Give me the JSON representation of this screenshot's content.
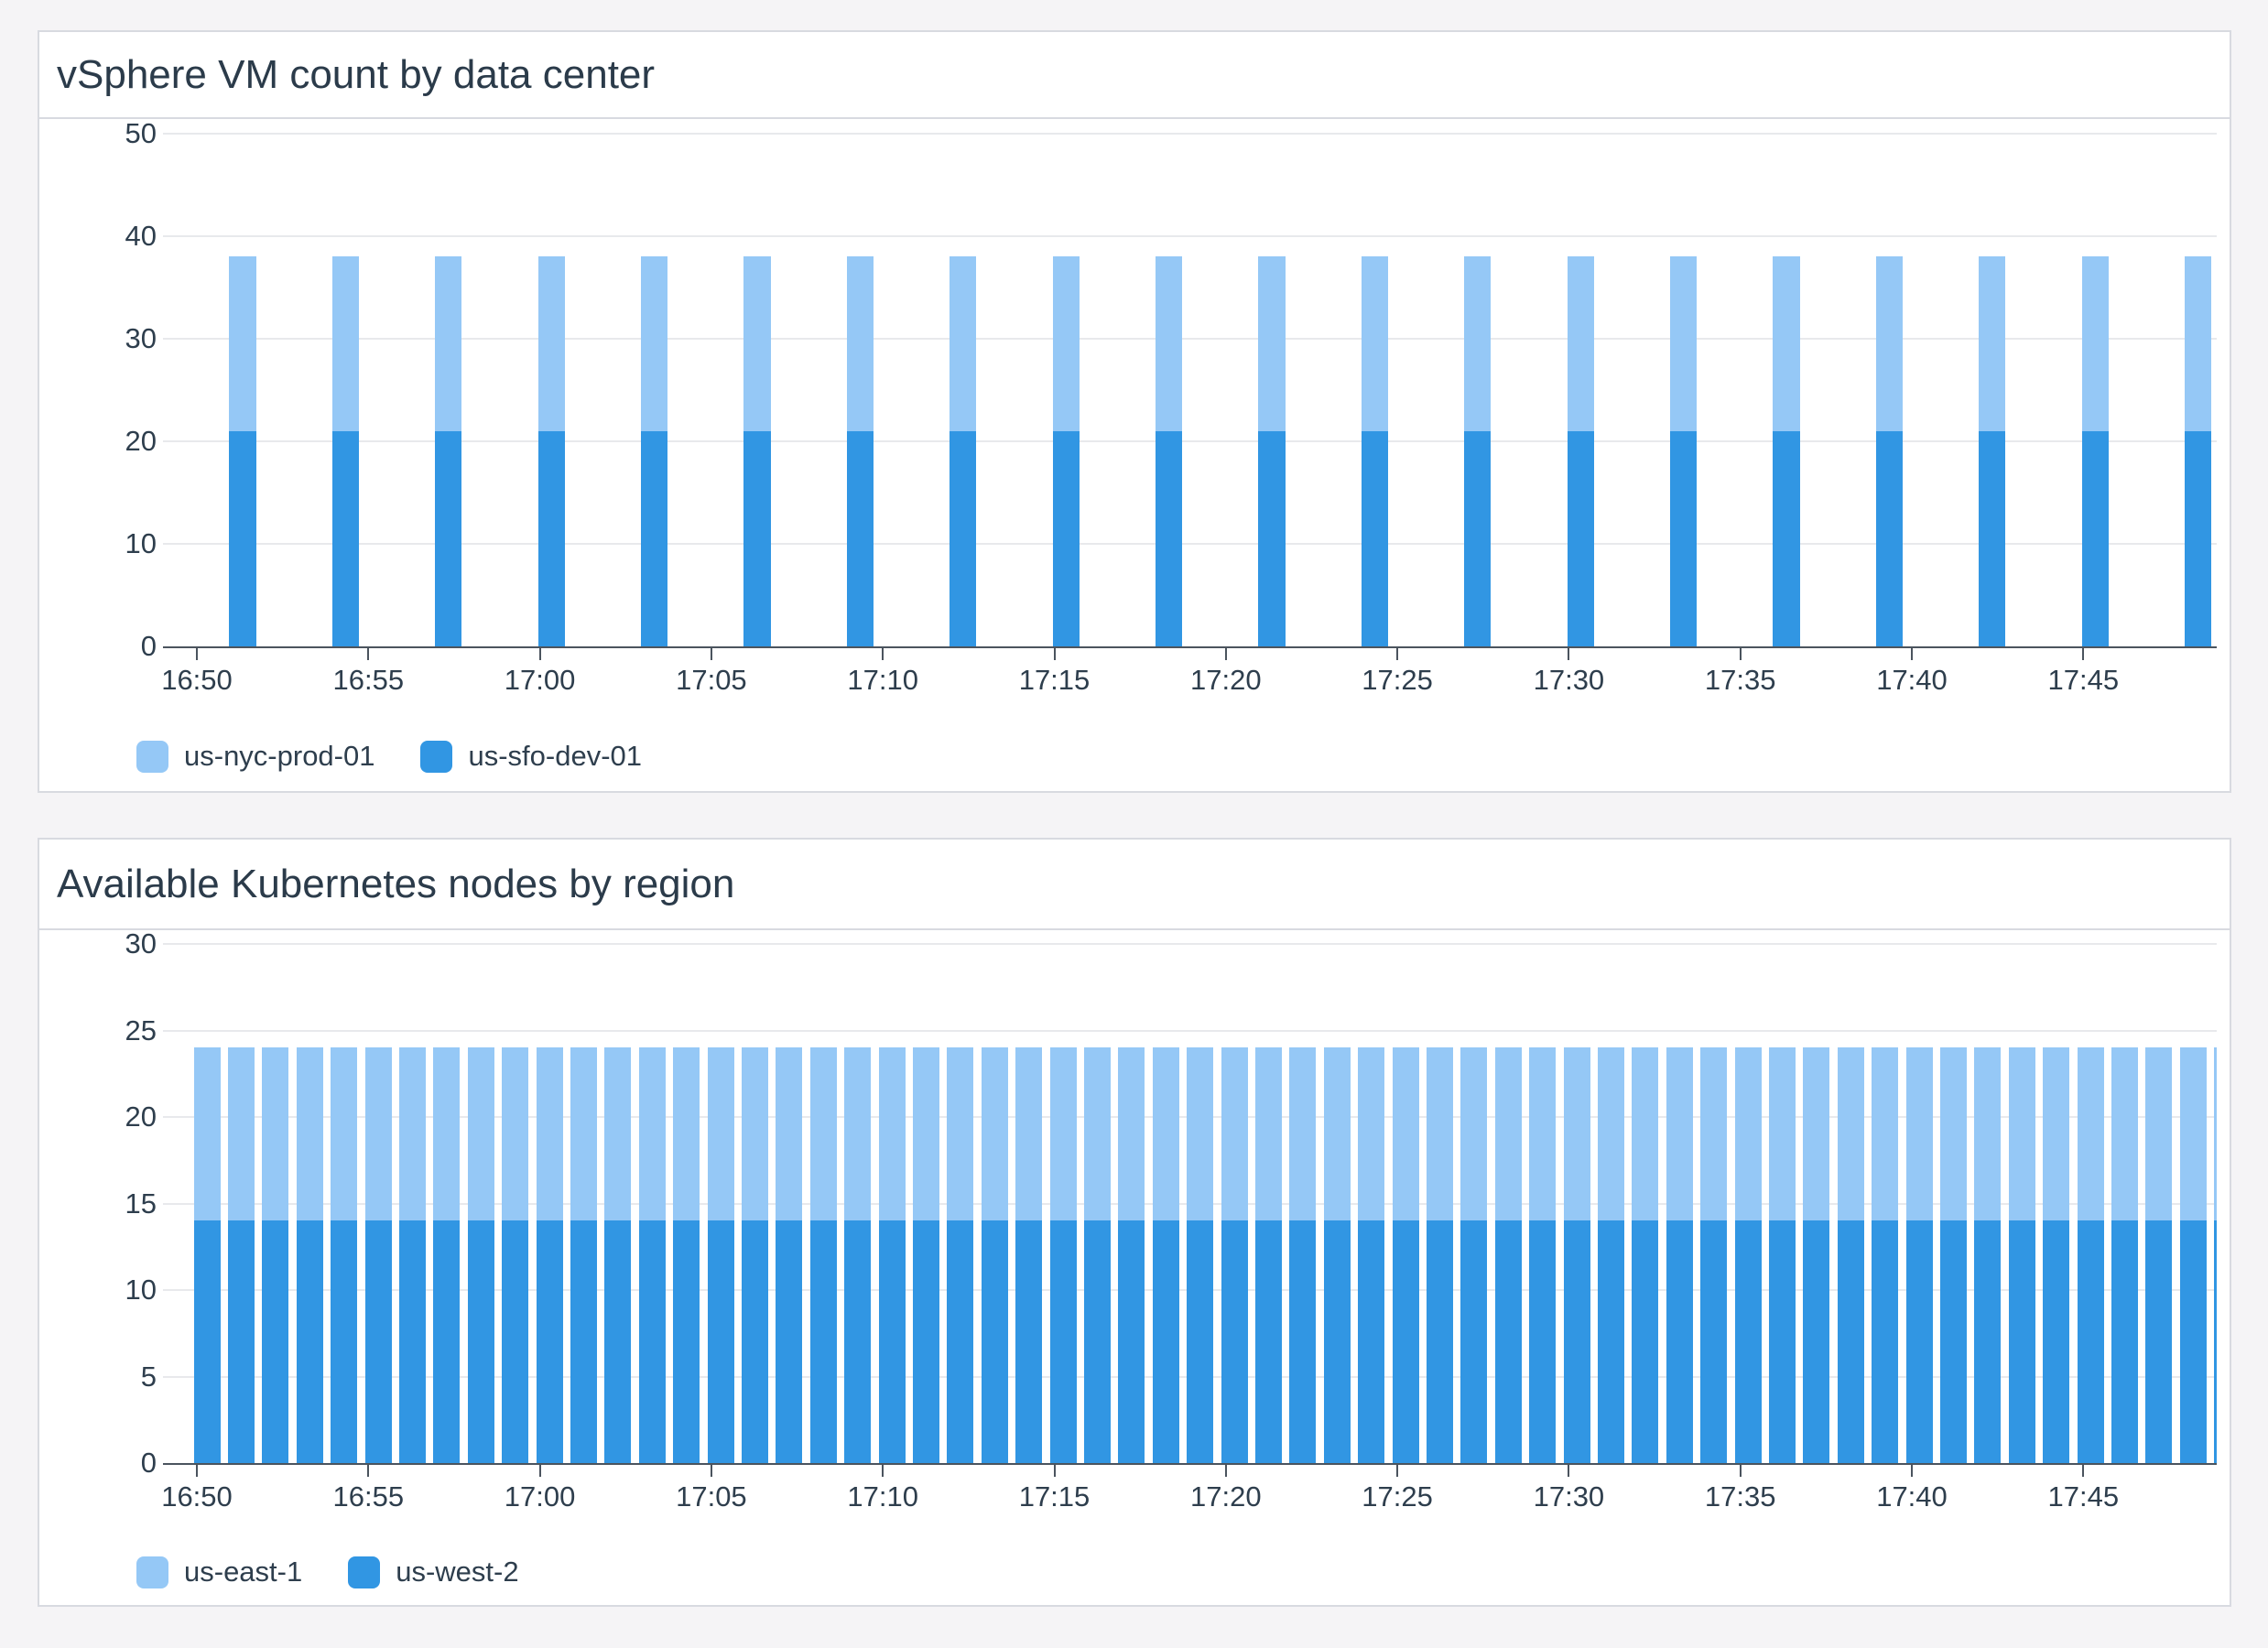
{
  "page": {
    "background_color": "#F5F4F6",
    "panel_background_color": "#FFFFFF",
    "panel_border_color": "#D8DAE0",
    "text_color": "#2B3B4A",
    "gridline_color": "#E8E9EC",
    "axis_color": "#4B545E"
  },
  "panels": [
    {
      "title": "vSphere VM count by data center",
      "legend": [
        {
          "label": "us-nyc-prod-01",
          "color": "#95C8F6"
        },
        {
          "label": "us-sfo-dev-01",
          "color": "#3196E3"
        }
      ]
    },
    {
      "title": "Available Kubernetes nodes by region",
      "legend": [
        {
          "label": "us-east-1",
          "color": "#95C8F6"
        },
        {
          "label": "us-west-2",
          "color": "#3196E3"
        }
      ]
    }
  ],
  "chart_data": [
    {
      "type": "bar",
      "stacked": true,
      "title": "vSphere VM count by data center",
      "interval_minutes": 3,
      "x": [
        "16:51",
        "16:54",
        "16:57",
        "17:00",
        "17:03",
        "17:06",
        "17:09",
        "17:12",
        "17:15",
        "17:18",
        "17:21",
        "17:24",
        "17:27",
        "17:30",
        "17:33",
        "17:36",
        "17:39",
        "17:42",
        "17:45",
        "17:48"
      ],
      "series": [
        {
          "name": "us-sfo-dev-01",
          "color": "#3196E3",
          "stack": "bottom",
          "values": [
            21,
            21,
            21,
            21,
            21,
            21,
            21,
            21,
            21,
            21,
            21,
            21,
            21,
            21,
            21,
            21,
            21,
            21,
            21,
            21
          ]
        },
        {
          "name": "us-nyc-prod-01",
          "color": "#95C8F6",
          "stack": "top",
          "values": [
            17,
            17,
            17,
            17,
            17,
            17,
            17,
            17,
            17,
            17,
            17,
            17,
            17,
            17,
            17,
            17,
            17,
            17,
            17,
            17
          ]
        }
      ],
      "stacked_total": 38,
      "ylim": [
        0,
        50
      ],
      "y_ticks": [
        0,
        10,
        20,
        30,
        40,
        50
      ],
      "x_tick_labels": [
        "16:50",
        "16:55",
        "17:00",
        "17:05",
        "17:10",
        "17:15",
        "17:20",
        "17:25",
        "17:30",
        "17:35",
        "17:40",
        "17:45"
      ],
      "grid": true,
      "legend_position": "bottom-left"
    },
    {
      "type": "bar",
      "stacked": true,
      "title": "Available Kubernetes nodes by region",
      "interval_minutes": 1,
      "x": [
        "16:50",
        "16:51",
        "16:52",
        "16:53",
        "16:54",
        "16:55",
        "16:56",
        "16:57",
        "16:58",
        "16:59",
        "17:00",
        "17:01",
        "17:02",
        "17:03",
        "17:04",
        "17:05",
        "17:06",
        "17:07",
        "17:08",
        "17:09",
        "17:10",
        "17:11",
        "17:12",
        "17:13",
        "17:14",
        "17:15",
        "17:16",
        "17:17",
        "17:18",
        "17:19",
        "17:20",
        "17:21",
        "17:22",
        "17:23",
        "17:24",
        "17:25",
        "17:26",
        "17:27",
        "17:28",
        "17:29",
        "17:30",
        "17:31",
        "17:32",
        "17:33",
        "17:34",
        "17:35",
        "17:36",
        "17:37",
        "17:38",
        "17:39",
        "17:40",
        "17:41",
        "17:42",
        "17:43",
        "17:44",
        "17:45",
        "17:46",
        "17:47",
        "17:48",
        "17:49"
      ],
      "series": [
        {
          "name": "us-west-2",
          "color": "#3196E3",
          "stack": "bottom",
          "values": [
            14,
            14,
            14,
            14,
            14,
            14,
            14,
            14,
            14,
            14,
            14,
            14,
            14,
            14,
            14,
            14,
            14,
            14,
            14,
            14,
            14,
            14,
            14,
            14,
            14,
            14,
            14,
            14,
            14,
            14,
            14,
            14,
            14,
            14,
            14,
            14,
            14,
            14,
            14,
            14,
            14,
            14,
            14,
            14,
            14,
            14,
            14,
            14,
            14,
            14,
            14,
            14,
            14,
            14,
            14,
            14,
            14,
            14,
            14,
            14
          ]
        },
        {
          "name": "us-east-1",
          "color": "#95C8F6",
          "stack": "top",
          "values": [
            10,
            10,
            10,
            10,
            10,
            10,
            10,
            10,
            10,
            10,
            10,
            10,
            10,
            10,
            10,
            10,
            10,
            10,
            10,
            10,
            10,
            10,
            10,
            10,
            10,
            10,
            10,
            10,
            10,
            10,
            10,
            10,
            10,
            10,
            10,
            10,
            10,
            10,
            10,
            10,
            10,
            10,
            10,
            10,
            10,
            10,
            10,
            10,
            10,
            10,
            10,
            10,
            10,
            10,
            10,
            10,
            10,
            10,
            10,
            10
          ]
        }
      ],
      "stacked_total": 24,
      "ylim": [
        0,
        30
      ],
      "y_ticks": [
        0,
        5,
        10,
        15,
        20,
        25,
        30
      ],
      "x_tick_labels": [
        "16:50",
        "16:55",
        "17:00",
        "17:05",
        "17:10",
        "17:15",
        "17:20",
        "17:25",
        "17:30",
        "17:35",
        "17:40",
        "17:45"
      ],
      "grid": true,
      "legend_position": "bottom-left"
    }
  ]
}
